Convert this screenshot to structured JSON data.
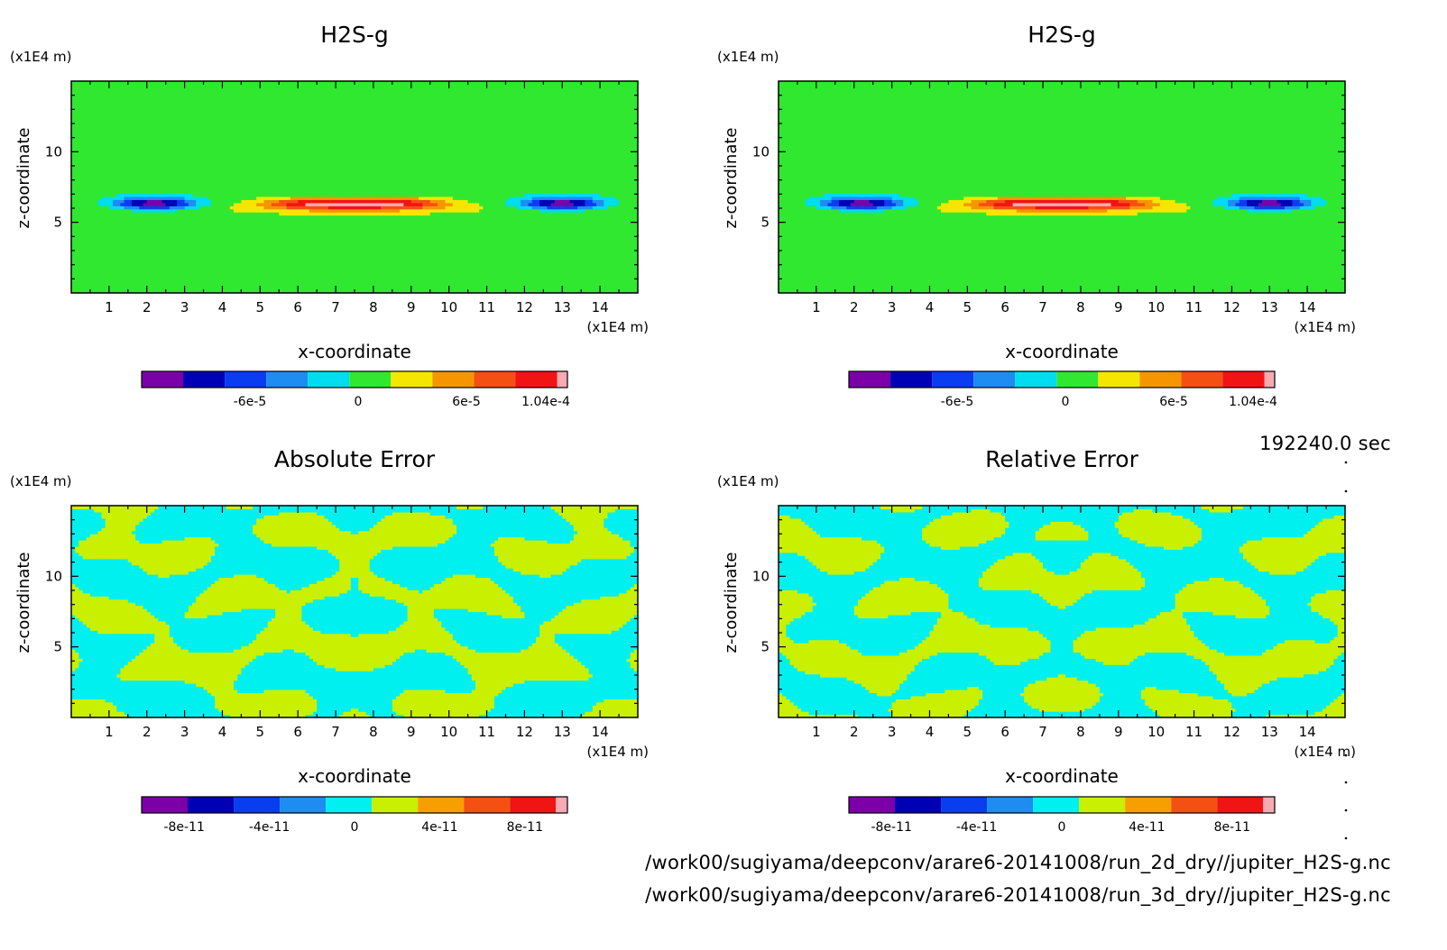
{
  "time_label": "192240.0 sec",
  "file_paths": [
    "/work00/sugiyama/deepconv/arare6-20141008/run_2d_dry//jupiter_H2S-g.nc",
    "/work00/sugiyama/deepconv/arare6-20141008/run_3d_dry//jupiter_H2S-g.nc"
  ],
  "chart_data": [
    {
      "type": "heatmap",
      "title": "H2S-g",
      "xlabel": "x-coordinate",
      "ylabel": "z-coordinate",
      "x_unit": "(x1E4 m)",
      "y_unit": "(x1E4 m)",
      "xlim": [
        0,
        15
      ],
      "ylim": [
        0,
        15
      ],
      "x_ticks": [
        "1",
        "2",
        "3",
        "4",
        "5",
        "6",
        "7",
        "8",
        "9",
        "10",
        "11",
        "12",
        "13",
        "14"
      ],
      "y_ticks": [
        "5",
        "10"
      ],
      "colorbar": {
        "colors": [
          "#7b00a8",
          "#0000b4",
          "#0a3cf0",
          "#1e8cf0",
          "#00dcf0",
          "#30e830",
          "#f5e600",
          "#f59600",
          "#f55014",
          "#f01414",
          "#f5aab4"
        ],
        "labels": [
          "-6e-5",
          "0",
          "6e-5",
          "1.04e-4"
        ],
        "label_values": [
          -6e-05,
          0,
          6e-05,
          0.000104
        ],
        "range": [
          -0.00012,
          0.000116
        ]
      },
      "field": "h2s",
      "peak_positive": 0.000104,
      "peak_negative": -0.00012,
      "anomaly_z": 6.3
    },
    {
      "type": "heatmap",
      "title": "H2S-g",
      "xlabel": "x-coordinate",
      "ylabel": "z-coordinate",
      "x_unit": "(x1E4 m)",
      "y_unit": "(x1E4 m)",
      "xlim": [
        0,
        15
      ],
      "ylim": [
        0,
        15
      ],
      "x_ticks": [
        "1",
        "2",
        "3",
        "4",
        "5",
        "6",
        "7",
        "8",
        "9",
        "10",
        "11",
        "12",
        "13",
        "14"
      ],
      "y_ticks": [
        "5",
        "10"
      ],
      "colorbar": {
        "colors": [
          "#7b00a8",
          "#0000b4",
          "#0a3cf0",
          "#1e8cf0",
          "#00dcf0",
          "#30e830",
          "#f5e600",
          "#f59600",
          "#f55014",
          "#f01414",
          "#f5aab4"
        ],
        "labels": [
          "-6e-5",
          "0",
          "6e-5",
          "1.04e-4"
        ],
        "label_values": [
          -6e-05,
          0,
          6e-05,
          0.000104
        ],
        "range": [
          -0.00012,
          0.000116
        ]
      },
      "field": "h2s",
      "peak_positive": 0.000104,
      "peak_negative": -0.00012,
      "anomaly_z": 6.3
    },
    {
      "type": "heatmap",
      "title": "Absolute Error",
      "xlabel": "x-coordinate",
      "ylabel": "z-coordinate",
      "x_unit": "(x1E4 m)",
      "y_unit": "(x1E4 m)",
      "xlim": [
        0,
        15
      ],
      "ylim": [
        0,
        15
      ],
      "x_ticks": [
        "1",
        "2",
        "3",
        "4",
        "5",
        "6",
        "7",
        "8",
        "9",
        "10",
        "11",
        "12",
        "13",
        "14"
      ],
      "y_ticks": [
        "5",
        "10"
      ],
      "colorbar": {
        "colors": [
          "#7b00a8",
          "#0000b4",
          "#0a3cf0",
          "#1e8cf0",
          "#00f0f0",
          "#c8f000",
          "#f5a000",
          "#f55014",
          "#f01414",
          "#f5aab4"
        ],
        "labels": [
          "-8e-11",
          "-4e-11",
          "0",
          "4e-11",
          "8e-11"
        ],
        "label_values": [
          -8e-11,
          -4e-11,
          0,
          4e-11,
          8e-11
        ],
        "range": [
          -1e-10,
          1e-10
        ]
      },
      "field": "error",
      "visible_classes": [
        "#00f0f0",
        "#c8f000"
      ]
    },
    {
      "type": "heatmap",
      "title": "Relative Error",
      "xlabel": "x-coordinate",
      "ylabel": "z-coordinate",
      "x_unit": "(x1E4 m)",
      "y_unit": "(x1E4 m)",
      "xlim": [
        0,
        15
      ],
      "ylim": [
        0,
        15
      ],
      "x_ticks": [
        "1",
        "2",
        "3",
        "4",
        "5",
        "6",
        "7",
        "8",
        "9",
        "10",
        "11",
        "12",
        "13",
        "14"
      ],
      "y_ticks": [
        "5",
        "10"
      ],
      "colorbar": {
        "colors": [
          "#7b00a8",
          "#0000b4",
          "#0a3cf0",
          "#1e8cf0",
          "#00f0f0",
          "#c8f000",
          "#f5a000",
          "#f55014",
          "#f01414",
          "#f5aab4"
        ],
        "labels": [
          "-8e-11",
          "-4e-11",
          "0",
          "4e-11",
          "8e-11"
        ],
        "label_values": [
          -8e-11,
          -4e-11,
          0,
          4e-11,
          8e-11
        ],
        "range": [
          -1e-10,
          1e-10
        ]
      },
      "field": "error",
      "visible_classes": [
        "#00f0f0",
        "#c8f000"
      ]
    }
  ]
}
